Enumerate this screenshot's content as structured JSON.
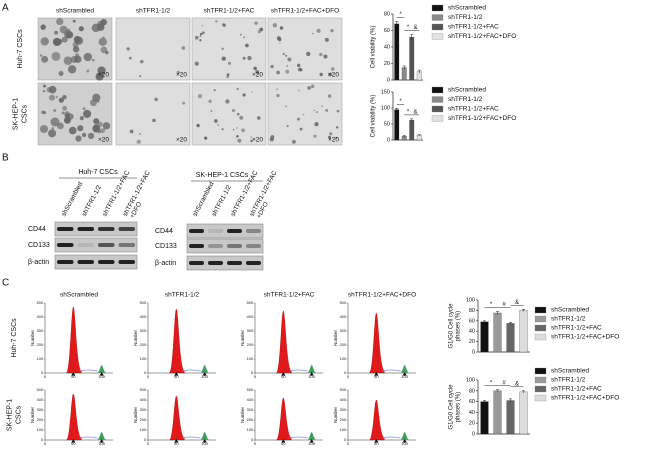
{
  "panel_labels": [
    "A",
    "B",
    "C"
  ],
  "panel_a": {
    "columns": [
      "shScrambled",
      "shTFR1-1/2",
      "shTFR1-1/2+FAC",
      "shTFR1-1/2+FAC+DFO"
    ],
    "rows": [
      [
        "Huh-7 CSCs"
      ],
      [
        "SK-HEP-1",
        "CSCs"
      ]
    ],
    "magnification": "×20"
  },
  "panel_b": {
    "blots": [
      {
        "title": "Huh-7 CSCs",
        "lanes": [
          [
            "shScrambled"
          ],
          [
            "shTFR1-1/2"
          ],
          [
            "shTFR1-1/2+FAC"
          ],
          [
            "shTFR1-1/2+FAC",
            "+DFO"
          ]
        ],
        "proteins": [
          "CD44",
          "CD133",
          "β-actin"
        ]
      },
      {
        "title": "SK-HEP-1 CSCs",
        "lanes": [
          [
            "shScrambled"
          ],
          [
            "shTFR1-1/2"
          ],
          [
            "shTFR1-1/2+FAC"
          ],
          [
            "shTFR1-1/2+FAC",
            "+DFO"
          ]
        ],
        "proteins": [
          "CD44",
          "CD133",
          "β-actin"
        ]
      }
    ]
  },
  "panel_c": {
    "columns": [
      "shScrambled",
      "shTFR1-1/2",
      "shTFR1-1/2+FAC",
      "shTFR1-1/2+FAC+DFO"
    ],
    "rows": [
      [
        "Huh-7 CSCs"
      ],
      [
        "SK-HEP-1",
        "CSCs"
      ]
    ],
    "histogram": {
      "ylabel": "Number",
      "yticks": [
        0,
        100,
        200,
        300,
        400,
        500
      ],
      "ylim": [
        0,
        500
      ],
      "xticks": [
        0,
        50,
        100
      ],
      "xlim": [
        0,
        120
      ]
    }
  },
  "chart_data": [
    {
      "type": "bar",
      "ylabel": [
        "Cell viability (%)"
      ],
      "categories": [
        "shScrambled",
        "shTFR1-1/2",
        "shTFR1-1/2+FAC",
        "shTFR1-1/2+FAC+DFO"
      ],
      "colors": [
        "#111111",
        "#8a8a8a",
        "#555555",
        "#e2e2e2"
      ],
      "values": [
        68,
        15,
        52,
        10
      ],
      "errors": [
        3,
        2,
        3,
        2
      ],
      "ylim": [
        0,
        80
      ],
      "yticks": [
        0,
        20,
        40,
        60,
        80
      ],
      "annotations": [
        "*",
        "*",
        "&"
      ]
    },
    {
      "type": "bar",
      "ylabel": [
        "Cell viability (%)"
      ],
      "categories": [
        "shScrambled",
        "shTFR1-1/2",
        "shTFR1-1/2+FAC",
        "shTFR1-1/2+FAC+DFO"
      ],
      "colors": [
        "#111111",
        "#8a8a8a",
        "#555555",
        "#e2e2e2"
      ],
      "values": [
        95,
        12,
        62,
        15
      ],
      "errors": [
        4,
        2,
        4,
        2
      ],
      "ylim": [
        0,
        150
      ],
      "yticks": [
        0,
        50,
        100,
        150
      ],
      "annotations": [
        "*",
        "*",
        "&"
      ]
    },
    {
      "type": "bar",
      "ylabel": [
        "G1/G0 Cell cycle",
        "phases (%)"
      ],
      "categories": [
        "shScrambled",
        "shTFR1-1/2",
        "shTFR1-1/2+FAC",
        "shTFR1-1/2+FAC+DFO"
      ],
      "colors": [
        "#111111",
        "#9a9a9a",
        "#666666",
        "#dddddd"
      ],
      "values": [
        58,
        75,
        55,
        80
      ],
      "errors": [
        2,
        3,
        2,
        2
      ],
      "ylim": [
        0,
        100
      ],
      "yticks": [
        0,
        20,
        40,
        60,
        80,
        100
      ],
      "annotations": [
        "*",
        "#",
        "&"
      ]
    },
    {
      "type": "bar",
      "ylabel": [
        "G1/G0 Cell cycle",
        "phases (%)"
      ],
      "categories": [
        "shScrambled",
        "shTFR1-1/2",
        "shTFR1-1/2+FAC",
        "shTFR1-1/2+FAC+DFO"
      ],
      "colors": [
        "#111111",
        "#9a9a9a",
        "#666666",
        "#dddddd"
      ],
      "values": [
        60,
        80,
        62,
        78
      ],
      "errors": [
        2,
        2,
        3,
        2
      ],
      "ylim": [
        0,
        100
      ],
      "yticks": [
        0,
        20,
        40,
        60,
        80,
        100
      ],
      "annotations": [
        "*",
        "#",
        "&"
      ]
    }
  ]
}
